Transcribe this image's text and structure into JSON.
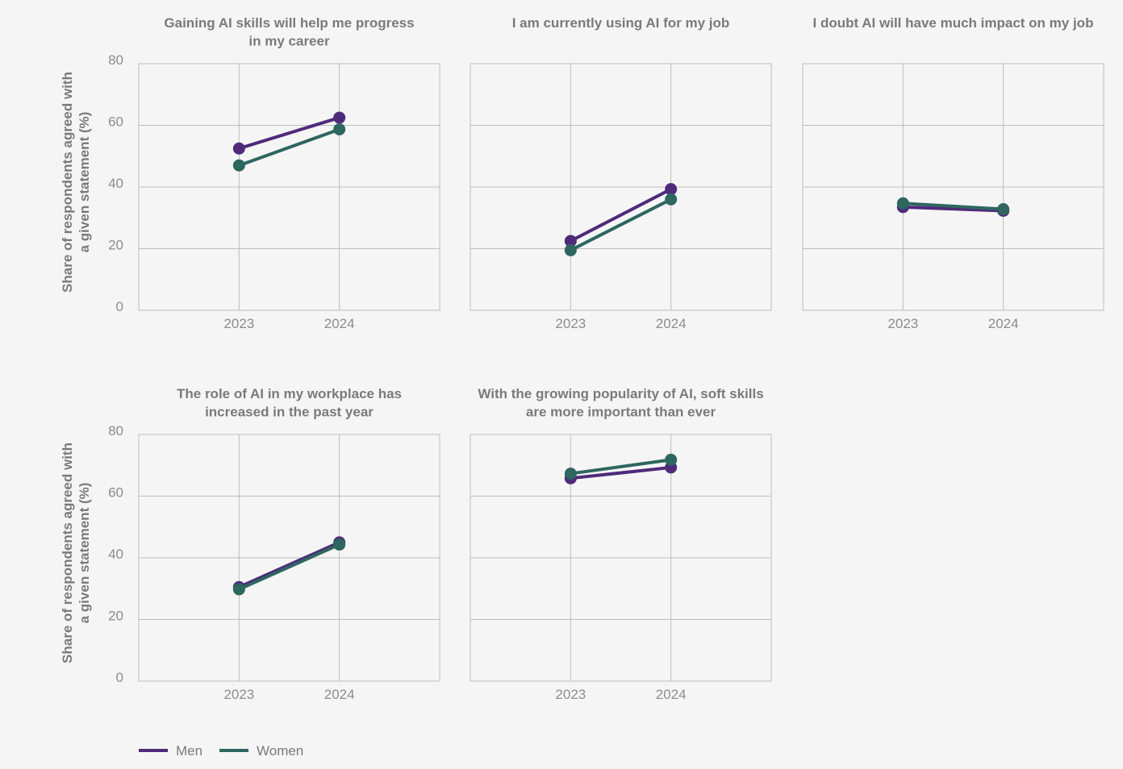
{
  "chart_data": {
    "type": "line",
    "ylabel_lines": [
      "Share of respondents agreed with",
      "a given statement (%)"
    ],
    "ylim": [
      0,
      80
    ],
    "yticks": [
      "0",
      "20",
      "40",
      "60",
      "80"
    ],
    "x": [
      "2023",
      "2024"
    ],
    "series_names": [
      "Men",
      "Women"
    ],
    "colors": {
      "Men": "#4f2a7a",
      "Women": "#2e6660"
    },
    "panels": [
      {
        "title_lines": [
          "Gaining AI skills will help me progress",
          "in my career"
        ],
        "series": [
          {
            "name": "Men",
            "values": [
              52.5,
              62.5
            ]
          },
          {
            "name": "Women",
            "values": [
              47.0,
              58.7
            ]
          }
        ]
      },
      {
        "title_lines": [
          "I am currently using AI for my job"
        ],
        "series": [
          {
            "name": "Men",
            "values": [
              22.5,
              39.3
            ]
          },
          {
            "name": "Women",
            "values": [
              19.5,
              36.0
            ]
          }
        ]
      },
      {
        "title_lines": [
          "I doubt AI will have much impact on my job"
        ],
        "series": [
          {
            "name": "Men",
            "values": [
              33.5,
              32.3
            ]
          },
          {
            "name": "Women",
            "values": [
              34.7,
              32.8
            ]
          }
        ]
      },
      {
        "title_lines": [
          "The role of AI in my workplace has",
          "increased in the past year"
        ],
        "series": [
          {
            "name": "Men",
            "values": [
              30.5,
              45.0
            ]
          },
          {
            "name": "Women",
            "values": [
              29.8,
              44.3
            ]
          }
        ]
      },
      {
        "title_lines": [
          "With the growing popularity of AI, soft skills",
          "are more important than ever"
        ],
        "series": [
          {
            "name": "Men",
            "values": [
              65.8,
              69.3
            ]
          },
          {
            "name": "Women",
            "values": [
              67.3,
              71.8
            ]
          }
        ]
      }
    ],
    "legend": [
      {
        "name": "Men"
      },
      {
        "name": "Women"
      }
    ]
  }
}
